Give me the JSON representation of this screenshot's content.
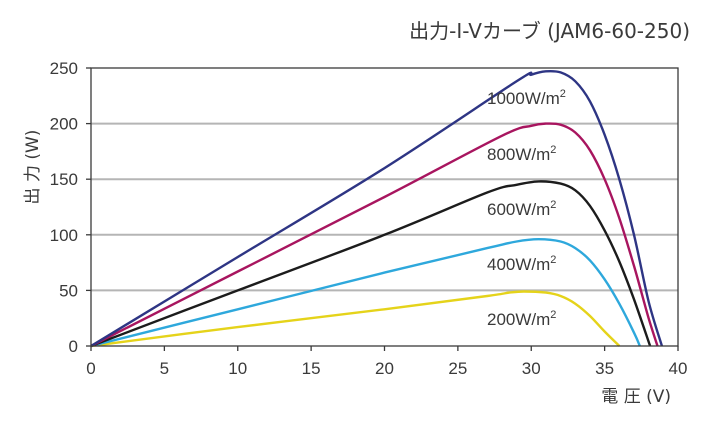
{
  "chart_data": {
    "type": "line",
    "title": "出力-I-Vカーブ (JAM6-60-250)",
    "xlabel": "電 圧 (V)",
    "ylabel": "出 力 (W)",
    "xlim": [
      0,
      40
    ],
    "ylim": [
      0,
      250
    ],
    "x_ticks": [
      "0",
      "5",
      "10",
      "15",
      "20",
      "25",
      "30",
      "35",
      "40"
    ],
    "y_ticks": [
      "0",
      "50",
      "100",
      "150",
      "200",
      "250"
    ],
    "grid": "horizontal",
    "series": [
      {
        "name": "1000W/m",
        "superscript": "2",
        "color": "#2e3584",
        "points": [
          [
            0,
            0
          ],
          [
            10,
            80
          ],
          [
            20,
            160
          ],
          [
            29,
            238
          ],
          [
            30,
            244
          ],
          [
            31,
            247
          ],
          [
            32,
            246
          ],
          [
            33,
            238
          ],
          [
            34,
            220
          ],
          [
            35,
            190
          ],
          [
            36,
            150
          ],
          [
            37,
            100
          ],
          [
            38,
            40
          ],
          [
            38.9,
            0
          ]
        ]
      },
      {
        "name": "800W/m",
        "superscript": "2",
        "color": "#a8155f",
        "points": [
          [
            0,
            0
          ],
          [
            10,
            67
          ],
          [
            20,
            134
          ],
          [
            28,
            189
          ],
          [
            30,
            198
          ],
          [
            31,
            200
          ],
          [
            32,
            199
          ],
          [
            33,
            192
          ],
          [
            34,
            176
          ],
          [
            35,
            150
          ],
          [
            36,
            115
          ],
          [
            37,
            72
          ],
          [
            38,
            25
          ],
          [
            38.6,
            0
          ]
        ]
      },
      {
        "name": "600W/m",
        "superscript": "2",
        "color": "#1c1c1c",
        "points": [
          [
            0,
            0
          ],
          [
            10,
            50
          ],
          [
            20,
            100
          ],
          [
            27,
            138
          ],
          [
            29,
            145
          ],
          [
            30.5,
            148
          ],
          [
            32,
            146
          ],
          [
            33,
            140
          ],
          [
            34,
            126
          ],
          [
            35,
            104
          ],
          [
            36,
            76
          ],
          [
            37,
            42
          ],
          [
            38.1,
            0
          ]
        ]
      },
      {
        "name": "400W/m",
        "superscript": "2",
        "color": "#2ea8dc",
        "points": [
          [
            0,
            0
          ],
          [
            10,
            33
          ],
          [
            20,
            66
          ],
          [
            27,
            88
          ],
          [
            29,
            94
          ],
          [
            30.5,
            96
          ],
          [
            32,
            94
          ],
          [
            33,
            88
          ],
          [
            34,
            77
          ],
          [
            35,
            60
          ],
          [
            36,
            38
          ],
          [
            37,
            12
          ],
          [
            37.4,
            0
          ]
        ]
      },
      {
        "name": "200W/m",
        "superscript": "2",
        "color": "#e5d31a",
        "points": [
          [
            0,
            0
          ],
          [
            10,
            17
          ],
          [
            20,
            33
          ],
          [
            27,
            45
          ],
          [
            28.5,
            48
          ],
          [
            29.5,
            49
          ],
          [
            31,
            48
          ],
          [
            32,
            45
          ],
          [
            33,
            38
          ],
          [
            34,
            27
          ],
          [
            35,
            13
          ],
          [
            36,
            0
          ]
        ]
      }
    ]
  }
}
